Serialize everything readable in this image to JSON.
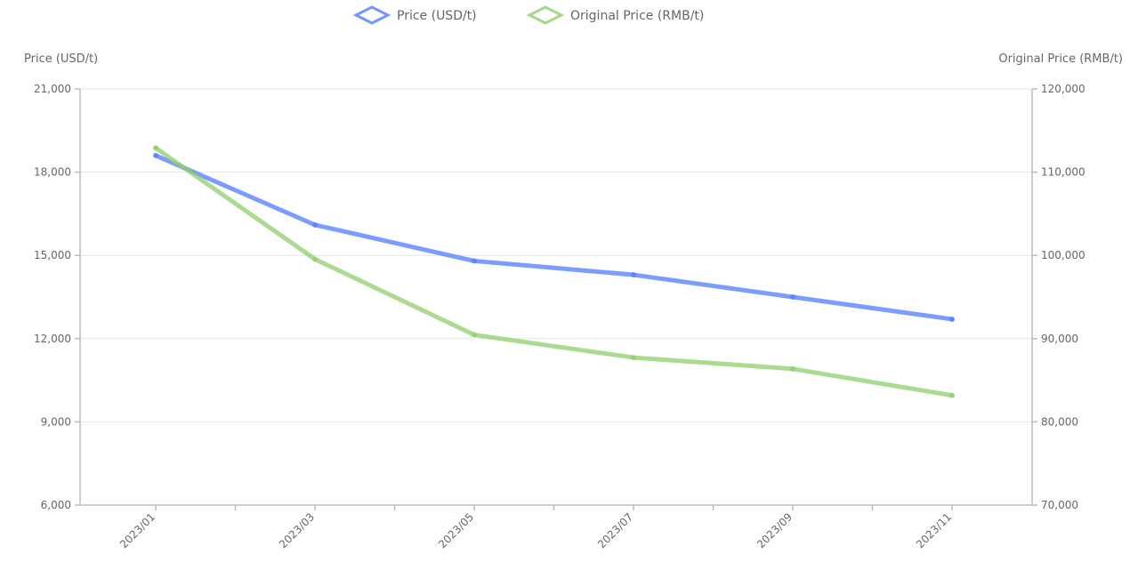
{
  "chart_data": {
    "type": "line",
    "x": [
      "2023/01",
      "2023/03",
      "2023/05",
      "2023/07",
      "2023/09",
      "2023/11"
    ],
    "series": [
      {
        "name": "Price (USD/t)",
        "axis": "left",
        "color": "#4f7cff",
        "values": [
          18600,
          16100,
          14800,
          14300,
          13500,
          12700
        ]
      },
      {
        "name": "Original Price (RMB/t)",
        "axis": "right",
        "color": "#8fcf6b",
        "values": [
          117200,
          102500,
          92500,
          89500,
          88000,
          84500
        ]
      }
    ],
    "y_left": {
      "label": "Price (USD/t)",
      "lim": [
        6000,
        21000
      ],
      "ticks": [
        "6,000",
        "9,000",
        "12,000",
        "15,000",
        "18,000",
        "21,000"
      ]
    },
    "y_right": {
      "label": "Original Price (RMB/t)",
      "lim": [
        70000,
        125000
      ],
      "ticks": [
        "70,000",
        "80,000",
        "90,000",
        "100,000",
        "110,000",
        "120,000"
      ]
    },
    "grid": true,
    "legend": "top-center"
  }
}
